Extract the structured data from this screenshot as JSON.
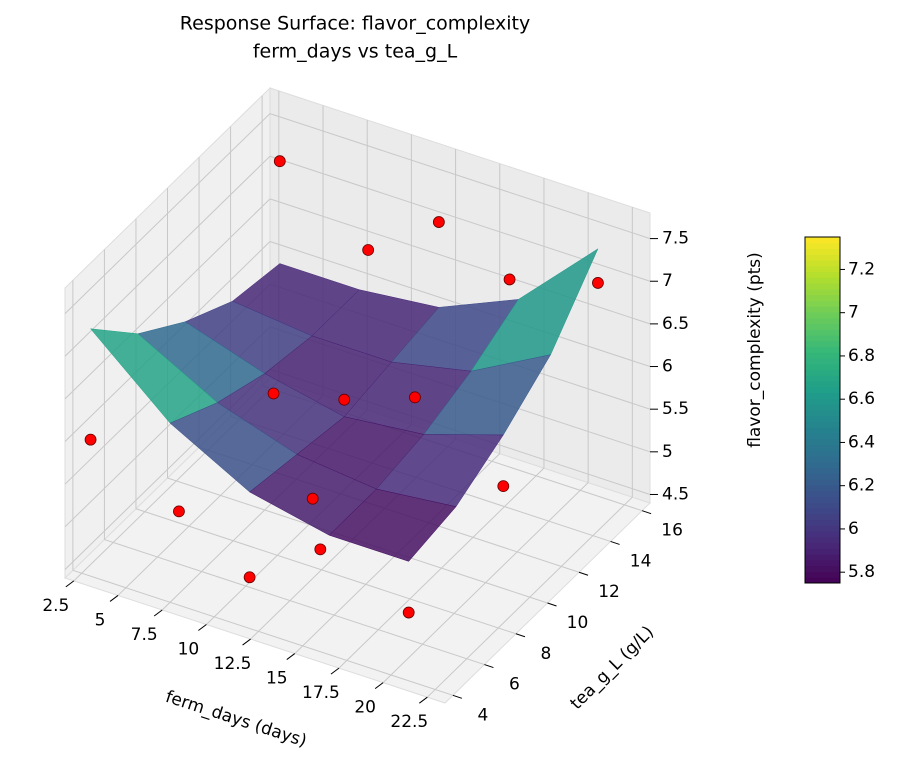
{
  "chart_data": {
    "type": "surface3d",
    "title": "Response Surface: flavor_complexity",
    "subtitle": "ferm_days vs tea_g_L",
    "x_label": "ferm_days (days)",
    "y_label": "tea_g_L (g/L)",
    "z_label": "flavor_complexity (pts)",
    "xlim": [
      2,
      23.5
    ],
    "ylim": [
      3.5,
      16.5
    ],
    "zlim": [
      4.4,
      7.8
    ],
    "xticks": [
      2.5,
      5.0,
      7.5,
      10.0,
      12.5,
      15.0,
      17.5,
      20.0,
      22.5
    ],
    "yticks": [
      4,
      6,
      8,
      10,
      12,
      14,
      16
    ],
    "zticks": [
      4.5,
      5.0,
      5.5,
      6.0,
      6.5,
      7.0,
      7.5
    ],
    "colormap": "viridis",
    "clim": [
      5.75,
      7.35
    ],
    "cticks": [
      5.8,
      6.0,
      6.2,
      6.4,
      6.6,
      6.8,
      7.0,
      7.2
    ],
    "surface": {
      "x": [
        3,
        7.5,
        12,
        16.5,
        21
      ],
      "y": [
        4,
        7,
        10,
        13,
        16
      ],
      "z": [
        [
          7.3,
          6.5,
          6.0,
          5.8,
          5.8
        ],
        [
          6.7,
          6.2,
          5.9,
          5.8,
          5.9
        ],
        [
          6.3,
          6.0,
          5.8,
          5.9,
          6.2
        ],
        [
          6.0,
          5.9,
          5.9,
          6.1,
          6.6
        ],
        [
          5.9,
          5.9,
          6.0,
          6.4,
          7.3
        ]
      ]
    },
    "points": {
      "color": "#ff0000",
      "x": [
        3,
        3,
        8,
        8,
        8,
        12,
        12,
        12,
        12,
        16,
        16,
        16,
        21,
        21,
        21
      ],
      "y": [
        4,
        16,
        4,
        10,
        16,
        4,
        8,
        10,
        16,
        4,
        10,
        16,
        4,
        10,
        16
      ],
      "z": [
        6.0,
        7.1,
        5.5,
        5.8,
        6.4,
        5.0,
        5.2,
        6.0,
        7.0,
        5.6,
        6.3,
        6.6,
        5.2,
        5.6,
        6.9
      ]
    },
    "grid": true
  }
}
